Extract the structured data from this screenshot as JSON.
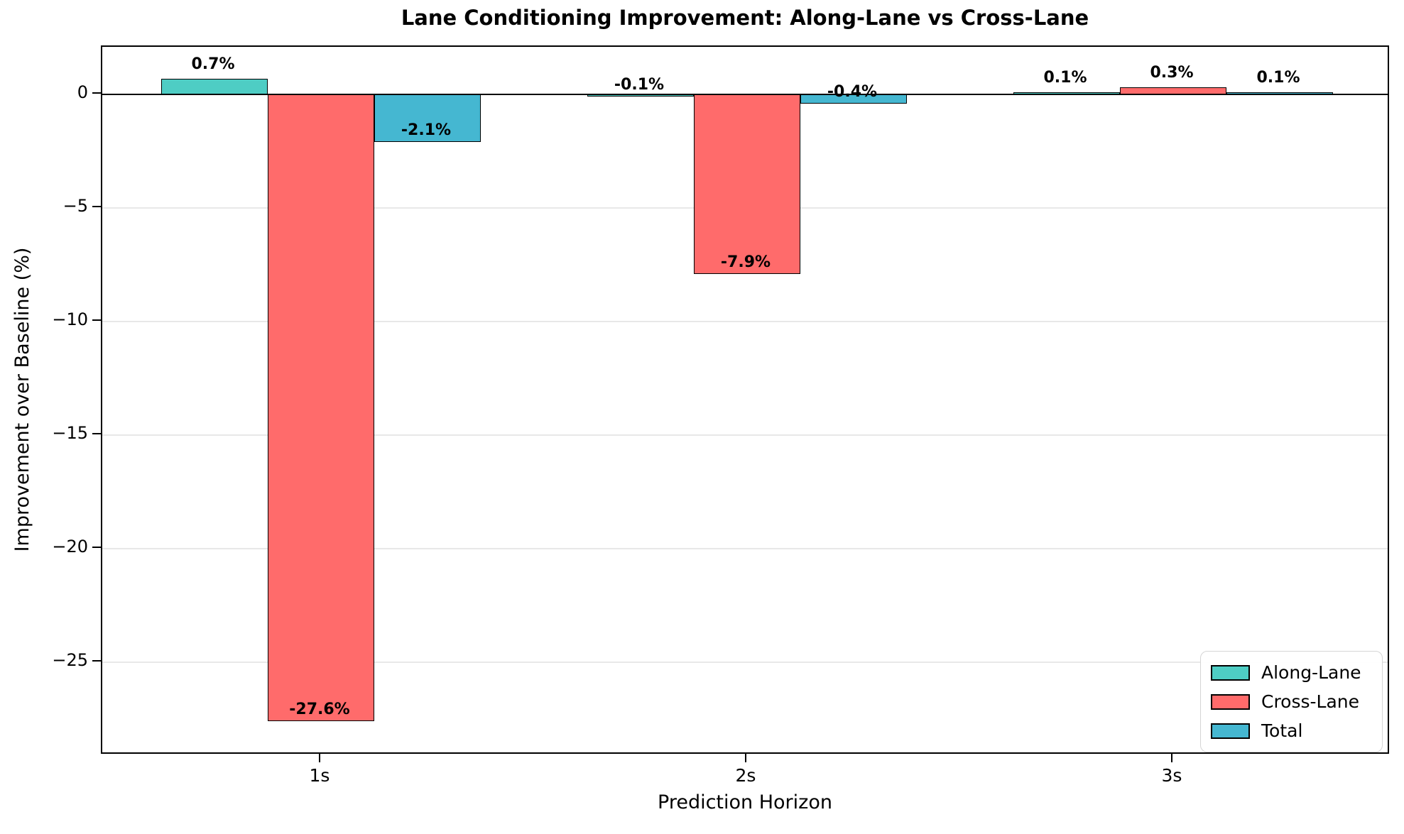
{
  "chart_data": {
    "type": "bar",
    "title": "Lane Conditioning Improvement: Along-Lane vs Cross-Lane",
    "xlabel": "Prediction Horizon",
    "ylabel": "Improvement over Baseline (%)",
    "categories": [
      "1s",
      "2s",
      "3s"
    ],
    "series": [
      {
        "name": "Along-Lane",
        "color": "#4ECDC4",
        "values": [
          0.7,
          -0.1,
          0.1
        ],
        "labels": [
          "0.7%",
          "-0.1%",
          "0.1%"
        ]
      },
      {
        "name": "Cross-Lane",
        "color": "#FF6B6B",
        "values": [
          -27.6,
          -7.9,
          0.3
        ],
        "labels": [
          "-27.6%",
          "-7.9%",
          "0.3%"
        ]
      },
      {
        "name": "Total",
        "color": "#45B7D1",
        "values": [
          -2.1,
          -0.4,
          0.1
        ],
        "labels": [
          "-2.1%",
          "-0.4%",
          "0.1%"
        ]
      }
    ],
    "yticks": [
      0,
      -5,
      -10,
      -15,
      -20,
      -25
    ],
    "ytick_labels": [
      "0",
      "−5",
      "−10",
      "−15",
      "−20",
      "−25"
    ],
    "ylim": [
      -29.09,
      2.09
    ],
    "grid": true,
    "zero_line": true,
    "legend_position": "lower right",
    "edge_color": "#000000",
    "grid_color": "#e8e8e8"
  }
}
